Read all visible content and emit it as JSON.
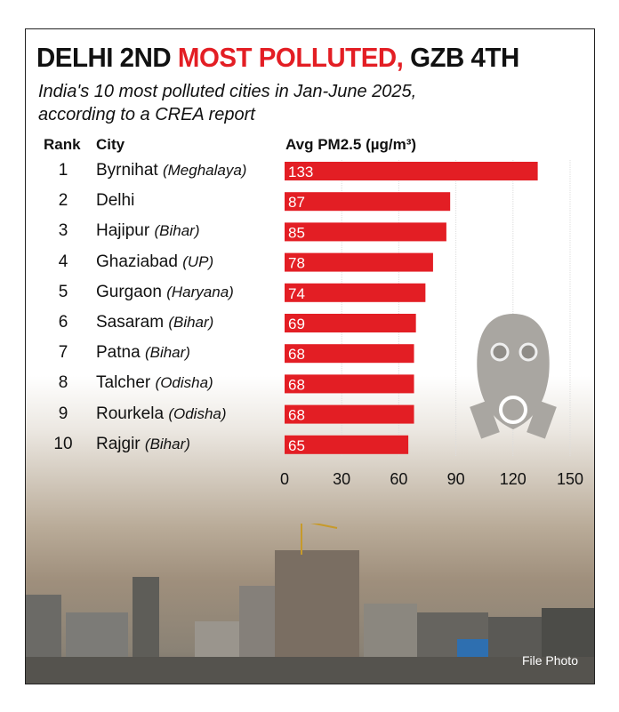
{
  "title": {
    "part1": "DELHI 2ND ",
    "part2": "MOST POLLUTED,",
    "part3": " GZB 4TH"
  },
  "subtitle": [
    "India's 10 most polluted cities in Jan-June 2025,",
    "according to a CREA report"
  ],
  "credit": "File Photo",
  "colors": {
    "bar": "#e31e24",
    "accent": "#e31e24"
  },
  "chart_data": {
    "type": "bar",
    "orientation": "horizontal",
    "headers": {
      "rank": "Rank",
      "city": "City",
      "value": "Avg PM2.5 (µg/m³)"
    },
    "ranks": [
      "1",
      "2",
      "3",
      "4",
      "5",
      "6",
      "7",
      "8",
      "9",
      "10"
    ],
    "categories": [
      "Byrnihat",
      "Delhi",
      "Hajipur",
      "Ghaziabad",
      "Gurgaon",
      "Sasaram",
      "Patna",
      "Talcher",
      "Rourkela",
      "Rajgir"
    ],
    "states": [
      "(Meghalaya)",
      "",
      "(Bihar)",
      "(UP)",
      "(Haryana)",
      "(Bihar)",
      "(Bihar)",
      "(Odisha)",
      "(Odisha)",
      "(Bihar)"
    ],
    "values": [
      133,
      87,
      85,
      78,
      74,
      69,
      68,
      68,
      68,
      65
    ],
    "xlim": [
      0,
      150
    ],
    "ticks": [
      "0",
      "30",
      "60",
      "90",
      "120",
      "150"
    ],
    "grid": true
  }
}
